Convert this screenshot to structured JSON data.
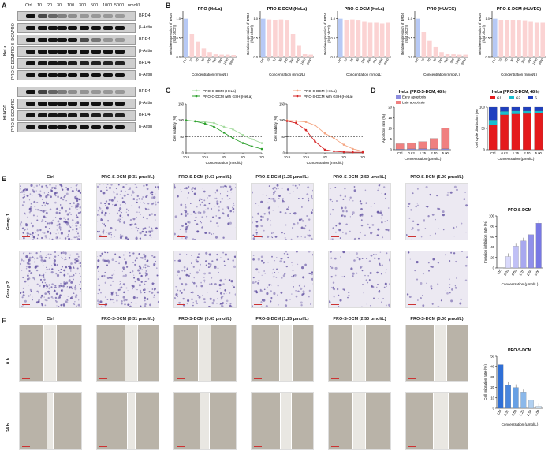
{
  "letters": {
    "a": "A",
    "b": "B",
    "c": "C",
    "d": "D",
    "e": "E",
    "f": "F"
  },
  "wb": {
    "header": [
      "Ctrl",
      "10",
      "20",
      "30",
      "100",
      "300",
      "500",
      "1000",
      "5000",
      "nmol/L"
    ],
    "groups": [
      {
        "label": "HeLa",
        "rows": [
          {
            "cell": "PRO",
            "protein": "BRD4"
          },
          {
            "cell": "",
            "protein": "β-Actin"
          },
          {
            "cell": "PRO-S-DCM",
            "protein": "BRD4"
          },
          {
            "cell": "",
            "protein": "β-Actin"
          },
          {
            "cell": "PRO-C-DCM",
            "protein": "BRD4"
          },
          {
            "cell": "",
            "protein": "β-Actin"
          }
        ]
      },
      {
        "label": "HUVEC",
        "rows": [
          {
            "cell": "PRO",
            "protein": "BRD4"
          },
          {
            "cell": "",
            "protein": "β-Actin"
          },
          {
            "cell": "PRO-S-DCM",
            "protein": "BRD4"
          },
          {
            "cell": "",
            "protein": "β-Actin"
          }
        ]
      }
    ]
  },
  "chart_data": [
    {
      "type": "bar",
      "title": "PRO (HeLa)",
      "ylabel": "Relative expression of BRD4 (fold of Ctrl)",
      "xlabel": "Concentration (nmol/L)",
      "categories": [
        "Ctrl",
        "10",
        "20",
        "30",
        "100",
        "300",
        "500",
        "1000",
        "5000"
      ],
      "values": [
        1.0,
        0.6,
        0.4,
        0.22,
        0.12,
        0.06,
        0.05,
        0.05,
        0.04
      ],
      "ylim": [
        0,
        1.2
      ]
    },
    {
      "type": "bar",
      "title": "PRO-S-DCM (HeLa)",
      "ylabel": "Relative expression of BRD4 (fold of Ctrl)",
      "xlabel": "Concentration (nmol/L)",
      "categories": [
        "Ctrl",
        "10",
        "20",
        "30",
        "100",
        "300",
        "500",
        "1000",
        "5000"
      ],
      "values": [
        1.0,
        0.98,
        0.97,
        0.98,
        0.95,
        0.6,
        0.3,
        0.08,
        0.05
      ],
      "ylim": [
        0,
        1.2
      ]
    },
    {
      "type": "bar",
      "title": "PRO-C-DCM (HeLa)",
      "ylabel": "Relative expression of BRD4 (fold of Ctrl)",
      "xlabel": "Concentration (nmol/L)",
      "categories": [
        "Ctrl",
        "10",
        "20",
        "30",
        "100",
        "300",
        "500",
        "1000",
        "5000"
      ],
      "values": [
        1.0,
        0.96,
        0.98,
        0.95,
        0.92,
        0.9,
        0.9,
        0.88,
        0.9
      ],
      "ylim": [
        0,
        1.2
      ]
    },
    {
      "type": "bar",
      "title": "PRO (HUVEC)",
      "ylabel": "Relative expression of BRD4 (fold of Ctrl)",
      "xlabel": "Concentration (nmol/L)",
      "categories": [
        "Ctrl",
        "10",
        "20",
        "30",
        "100",
        "300",
        "500",
        "1000",
        "5000"
      ],
      "values": [
        1.0,
        0.65,
        0.42,
        0.25,
        0.12,
        0.08,
        0.06,
        0.05,
        0.05
      ],
      "ylim": [
        0,
        1.2
      ]
    },
    {
      "type": "bar",
      "title": "PRO-S-DCM (HUVEC)",
      "ylabel": "Relative expression of BRD4 (fold of Ctrl)",
      "xlabel": "Concentration (nmol/L)",
      "categories": [
        "Ctrl",
        "10",
        "20",
        "30",
        "100",
        "300",
        "500",
        "1000",
        "5000"
      ],
      "values": [
        1.0,
        0.97,
        0.97,
        0.96,
        0.95,
        0.94,
        0.92,
        0.9,
        0.9
      ],
      "ylim": [
        0,
        1.2
      ]
    },
    {
      "type": "scatter",
      "title": "",
      "ylabel": "Cell viability (%)",
      "xlabel": "Concentration (nmol/L)",
      "xscale": "log",
      "xlim": [
        0.01,
        100
      ],
      "ylim": [
        0,
        150
      ],
      "xticks": [
        "10⁻²",
        "10⁻¹",
        "10⁰",
        "10¹",
        "10²"
      ],
      "yticks": [
        "0",
        "50",
        "100",
        "150"
      ],
      "reference_y": 50,
      "series": [
        {
          "name": "PRO-C-DCM (HeLa)",
          "color": "#a6dba0",
          "x": [
            0.01,
            0.03,
            0.1,
            0.3,
            1,
            3,
            10,
            30,
            100
          ],
          "y": [
            100,
            98,
            95,
            92,
            80,
            72,
            55,
            42,
            30
          ]
        },
        {
          "name": "PRO-C-DCM with GSH (HeLa)",
          "color": "#2ca02c",
          "x": [
            0.01,
            0.03,
            0.1,
            0.3,
            1,
            3,
            10,
            30,
            100
          ],
          "y": [
            100,
            97,
            90,
            80,
            62,
            45,
            30,
            20,
            12
          ]
        }
      ]
    },
    {
      "type": "scatter",
      "title": "",
      "ylabel": "Cell viability (%)",
      "xlabel": "Concentration (nmol/L)",
      "xscale": "log",
      "xlim": [
        0.01,
        100
      ],
      "ylim": [
        0,
        150
      ],
      "xticks": [
        "10⁻²",
        "10⁻¹",
        "10⁰",
        "10¹",
        "10²"
      ],
      "yticks": [
        "0",
        "50",
        "100",
        "150"
      ],
      "reference_y": 50,
      "series": [
        {
          "name": "PRO-S-DCM (HeLa)",
          "color": "#f4a582",
          "x": [
            0.01,
            0.03,
            0.1,
            0.3,
            1,
            3,
            10,
            30,
            100
          ],
          "y": [
            100,
            98,
            95,
            85,
            60,
            45,
            25,
            12,
            5
          ]
        },
        {
          "name": "PRO-S-DCM with GSH (HeLa)",
          "color": "#d62728",
          "x": [
            0.01,
            0.03,
            0.1,
            0.3,
            1,
            3,
            10,
            30,
            100
          ],
          "y": [
            98,
            92,
            70,
            35,
            10,
            5,
            3,
            2,
            2
          ]
        }
      ]
    },
    {
      "type": "bar",
      "title": "HeLa (PRO-S-DCM, 48 h)",
      "ylabel": "Apoptosis rate (%)",
      "xlabel": "Concentration (μmol/L)",
      "categories": [
        "Ctrl",
        "0.63",
        "1.25",
        "2.50",
        "5.00"
      ],
      "ylim": [
        0,
        20
      ],
      "yticks": [
        "0",
        "5",
        "10",
        "15",
        "20"
      ],
      "stacked": true,
      "series": [
        {
          "name": "Early apoptosis",
          "color": "#8e8ee0",
          "values": [
            0.3,
            0.4,
            0.5,
            0.5,
            0.5
          ]
        },
        {
          "name": "Late apoptosis",
          "color": "#f08080",
          "values": [
            2.5,
            2.9,
            3.3,
            4.8,
            9.8
          ]
        }
      ]
    },
    {
      "type": "bar",
      "title": "HeLa (PRO-S-DCM, 48 h)",
      "ylabel": "Cell cycle distribution (%)",
      "xlabel": "Concentration (μmol/L)",
      "categories": [
        "Ctrl",
        "0.63",
        "1.25",
        "2.50",
        "5.00"
      ],
      "ylim": [
        0,
        100
      ],
      "yticks": [
        "0",
        "50",
        "100"
      ],
      "stacked": true,
      "series": [
        {
          "name": "G1",
          "color": "#e41a1c",
          "values": [
            58,
            82,
            84,
            85,
            86
          ]
        },
        {
          "name": "G2",
          "color": "#17becf",
          "values": [
            12,
            8,
            7,
            6,
            5
          ]
        },
        {
          "name": "S",
          "color": "#1f3fbf",
          "values": [
            30,
            10,
            9,
            9,
            9
          ]
        }
      ]
    },
    {
      "type": "bar",
      "title": "PRO-S-DCM",
      "ylabel": "Invasion inhibition rate (%)",
      "xlabel": "Concentration (μmol/L)",
      "categories": [
        "Ctrl",
        "0.31",
        "0.63",
        "1.25",
        "2.50",
        "5.00"
      ],
      "values": [
        0,
        22,
        42,
        52,
        64,
        86
      ],
      "ylim": [
        0,
        100
      ],
      "yticks": [
        "0",
        "20",
        "40",
        "60",
        "80",
        "100"
      ],
      "colors": [
        "#eeeeff",
        "#d9d9fb",
        "#c0c0f5",
        "#a8a8ef",
        "#9090ea",
        "#7878e4"
      ]
    },
    {
      "type": "bar",
      "title": "PRO-S-DCM",
      "ylabel": "Cell migration rate (%)",
      "xlabel": "Concentration (μmol/L)",
      "categories": [
        "Ctrl",
        "0.31",
        "0.63",
        "1.25",
        "2.50",
        "5.00"
      ],
      "values": [
        42,
        22,
        20,
        15,
        8,
        2
      ],
      "ylim": [
        0,
        50
      ],
      "yticks": [
        "0",
        "10",
        "20",
        "30",
        "40",
        "50"
      ],
      "colors": [
        "#2f6fd6",
        "#4a86dd",
        "#68a0e4",
        "#8bb8ea",
        "#b1d0f1",
        "#d4e6f7"
      ]
    }
  ],
  "legend_c1": [
    "PRO-C-DCM (HeLa)",
    "PRO-C-DCM with GSH (HeLa)"
  ],
  "legend_c2": [
    "PRO-S-DCM (HeLa)",
    "PRO-S-DCM with GSH (HeLa)"
  ],
  "legend_d1": [
    "Early apoptosis",
    "Late apoptosis"
  ],
  "legend_d2": [
    "G1",
    "G2",
    "S"
  ],
  "micro": {
    "titles": [
      "Ctrl",
      "PRO-S-DCM (0.31 μmol/L)",
      "PRO-S-DCM (0.63 μmol/L)",
      "PRO-S-DCM (1.25 μmol/L)",
      "PRO-S-DCM (2.50 μmol/L)",
      "PRO-S-DCM (5.00 μmol/L)"
    ],
    "rowsE": [
      "Group 1",
      "Group 2"
    ],
    "rowsF": [
      "0 h",
      "24 h"
    ],
    "densityE": [
      1.0,
      0.75,
      0.55,
      0.45,
      0.35,
      0.2
    ]
  },
  "colors": {
    "blue_bar": "#b7c9f5",
    "pink_bar": "#fbd3d3",
    "purple_dot": "#5b4a9e"
  }
}
